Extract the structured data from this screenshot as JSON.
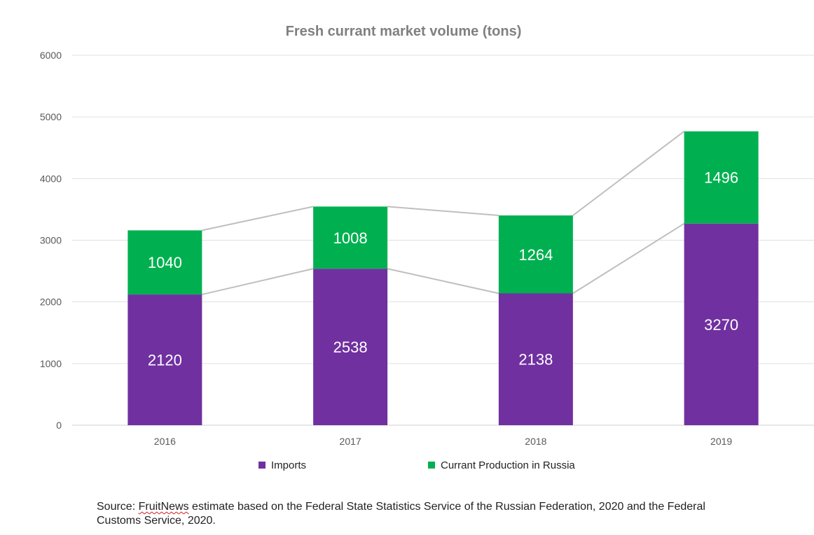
{
  "chart_data": {
    "type": "bar",
    "stacked": true,
    "title": "Fresh currant market volume (tons)",
    "categories": [
      "2016",
      "2017",
      "2018",
      "2019"
    ],
    "series": [
      {
        "name": "Imports",
        "values": [
          2120,
          2538,
          2138,
          3270
        ],
        "color": "#7030A0"
      },
      {
        "name": "Currant Production in Russia",
        "values": [
          1040,
          1008,
          1264,
          1496
        ],
        "color": "#00B050"
      }
    ],
    "ylim": [
      0,
      6000
    ],
    "yticks": [
      0,
      1000,
      2000,
      3000,
      4000,
      5000,
      6000
    ],
    "xlabel": "",
    "ylabel": "",
    "grid": true,
    "series_lines": true,
    "legend_position": "bottom"
  },
  "source": {
    "prefix": "Source: ",
    "highlighted": "FruitNews",
    "rest": " estimate based on the Federal State Statistics Service of the Russian Federation, 2020 and the Federal Customs Service, 2020."
  },
  "colors": {
    "title": "#808080",
    "axis_text": "#595959",
    "grid": "#e0e0e0",
    "series_line": "#bfbfbf",
    "data_label": "#ffffff"
  }
}
